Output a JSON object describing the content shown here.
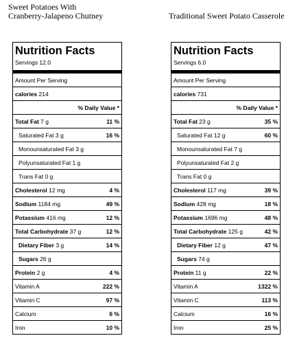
{
  "recipes": [
    {
      "title_line1": "Sweet Potatoes With",
      "title_line2": "Cranberry-Jalapeno Chutney",
      "panel_title": "Nutrition Facts",
      "servings": "Servings 12.0",
      "amount_per_serving": "Amount Per Serving",
      "calories_label": "calories",
      "calories_value": "214",
      "daily_value_header": "% Daily Value *",
      "rows": [
        {
          "label": "Total Fat",
          "amount": "7 g",
          "pct": "11 %",
          "bold": true,
          "indent": false
        },
        {
          "label": "Saturated Fat",
          "amount": "3 g",
          "pct": "16 %",
          "bold": false,
          "indent": true
        },
        {
          "label": "Monounsaturated Fat",
          "amount": "3 g",
          "pct": "",
          "bold": false,
          "indent": true
        },
        {
          "label": "Polyunsaturated Fat",
          "amount": "1 g",
          "pct": "",
          "bold": false,
          "indent": true
        },
        {
          "label": "Trans Fat",
          "amount": "0 g",
          "pct": "",
          "bold": false,
          "indent": true
        },
        {
          "label": "Cholesterol",
          "amount": "12 mg",
          "pct": "4 %",
          "bold": true,
          "indent": false
        },
        {
          "label": "Sodium",
          "amount": "1184 mg",
          "pct": "49 %",
          "bold": true,
          "indent": false
        },
        {
          "label": "Potassium",
          "amount": "416 mg",
          "pct": "12 %",
          "bold": true,
          "indent": false
        },
        {
          "label": "Total Carbohydrate",
          "amount": "37 g",
          "pct": "12 %",
          "bold": true,
          "indent": false
        },
        {
          "label": "Dietary Fiber",
          "amount": "3 g",
          "pct": "14 %",
          "bold": true,
          "indent": true
        },
        {
          "label": "Sugars",
          "amount": "26 g",
          "pct": "",
          "bold": true,
          "indent": true
        },
        {
          "label": "Protein",
          "amount": "2 g",
          "pct": "4 %",
          "bold": true,
          "indent": false
        },
        {
          "label": "Vitamin A",
          "amount": "",
          "pct": "222 %",
          "bold": false,
          "indent": false
        },
        {
          "label": "Vitamin C",
          "amount": "",
          "pct": "97 %",
          "bold": false,
          "indent": false
        },
        {
          "label": "Calcium",
          "amount": "",
          "pct": "6 %",
          "bold": false,
          "indent": false
        },
        {
          "label": "Iron",
          "amount": "",
          "pct": "10 %",
          "bold": false,
          "indent": false
        }
      ]
    },
    {
      "title_line1": "Traditional Sweet Potato Casserole",
      "title_line2": "",
      "panel_title": "Nutrition Facts",
      "servings": "Servings 6.0",
      "amount_per_serving": "Amount Per Serving",
      "calories_label": "calories",
      "calories_value": "731",
      "daily_value_header": "% Daily Value *",
      "rows": [
        {
          "label": "Total Fat",
          "amount": "23 g",
          "pct": "35 %",
          "bold": true,
          "indent": false
        },
        {
          "label": "Saturated Fat",
          "amount": "12 g",
          "pct": "60 %",
          "bold": false,
          "indent": true
        },
        {
          "label": "Monounsaturated Fat",
          "amount": "7 g",
          "pct": "",
          "bold": false,
          "indent": true
        },
        {
          "label": "Polyunsaturated Fat",
          "amount": "2 g",
          "pct": "",
          "bold": false,
          "indent": true
        },
        {
          "label": "Trans Fat",
          "amount": "0 g",
          "pct": "",
          "bold": false,
          "indent": true
        },
        {
          "label": "Cholesterol",
          "amount": "117 mg",
          "pct": "39 %",
          "bold": true,
          "indent": false
        },
        {
          "label": "Sodium",
          "amount": "428 mg",
          "pct": "18 %",
          "bold": true,
          "indent": false
        },
        {
          "label": "Potassium",
          "amount": "1696 mg",
          "pct": "48 %",
          "bold": true,
          "indent": false
        },
        {
          "label": "Total Carbohydrate",
          "amount": "125 g",
          "pct": "42 %",
          "bold": true,
          "indent": false
        },
        {
          "label": "Dietary Fiber",
          "amount": "12 g",
          "pct": "47 %",
          "bold": true,
          "indent": true
        },
        {
          "label": "Sugars",
          "amount": "74 g",
          "pct": "",
          "bold": true,
          "indent": true
        },
        {
          "label": "Protein",
          "amount": "11 g",
          "pct": "22 %",
          "bold": true,
          "indent": false
        },
        {
          "label": "Vitamin A",
          "amount": "",
          "pct": "1322 %",
          "bold": false,
          "indent": false
        },
        {
          "label": "Vitamin C",
          "amount": "",
          "pct": "113 %",
          "bold": false,
          "indent": false
        },
        {
          "label": "Calcium",
          "amount": "",
          "pct": "16 %",
          "bold": false,
          "indent": false
        },
        {
          "label": "Iron",
          "amount": "",
          "pct": "25 %",
          "bold": false,
          "indent": false
        }
      ]
    }
  ]
}
